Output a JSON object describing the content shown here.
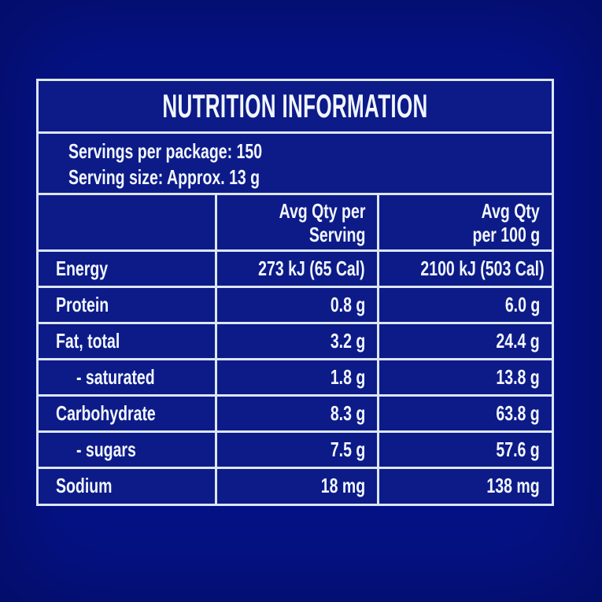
{
  "colors": {
    "background": "#051286",
    "panel_fill": "#0c1b87",
    "grid_lines": "#dce6f4",
    "text": "#f2f6fd"
  },
  "panel": {
    "title": "NUTRITION INFORMATION",
    "servings_per_package": "Servings per package: 150",
    "serving_size": "Serving size: Approx. 13 g",
    "header": {
      "col1": "",
      "col2_line1": "Avg Qty per",
      "col2_line2": "Serving",
      "col3_line1": "Avg Qty",
      "col3_line2": "per 100 g"
    },
    "rows": [
      {
        "label": "Energy",
        "per_serving": "273 kJ (65 Cal)",
        "per_100g": "2100 kJ (503 Cal)"
      },
      {
        "label": "Protein",
        "per_serving": "0.8 g",
        "per_100g": "6.0 g"
      },
      {
        "label": "Fat, total",
        "per_serving": "3.2 g",
        "per_100g": "24.4 g"
      },
      {
        "label": "- saturated",
        "per_serving": "1.8 g",
        "per_100g": "13.8 g"
      },
      {
        "label": "Carbohydrate",
        "per_serving": "8.3 g",
        "per_100g": "63.8 g"
      },
      {
        "label": "- sugars",
        "per_serving": "7.5 g",
        "per_100g": "57.6 g"
      },
      {
        "label": "Sodium",
        "per_serving": "18 mg",
        "per_100g": "138 mg"
      }
    ]
  }
}
